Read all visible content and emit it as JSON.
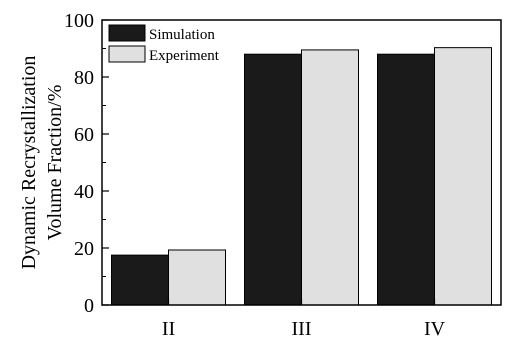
{
  "chart_data": {
    "type": "bar",
    "title": "",
    "xlabel": "",
    "ylabel": "Dynamic Recrystallization Volume Fraction/%",
    "ylabel_lines": [
      "Dynamic Recrystallization",
      "Volume Fraction/%"
    ],
    "categories": [
      "II",
      "III",
      "IV"
    ],
    "series": [
      {
        "name": "Simulation",
        "values": [
          17.5,
          88,
          88
        ],
        "color": "#1a1a1a"
      },
      {
        "name": "Experiment",
        "values": [
          19.3,
          89.5,
          90.3
        ],
        "color": "#e0e0e0"
      }
    ],
    "ylim": [
      0,
      100
    ],
    "yticks": [
      0,
      20,
      40,
      60,
      80,
      100
    ],
    "grid": false,
    "legend_position": "top-left"
  }
}
